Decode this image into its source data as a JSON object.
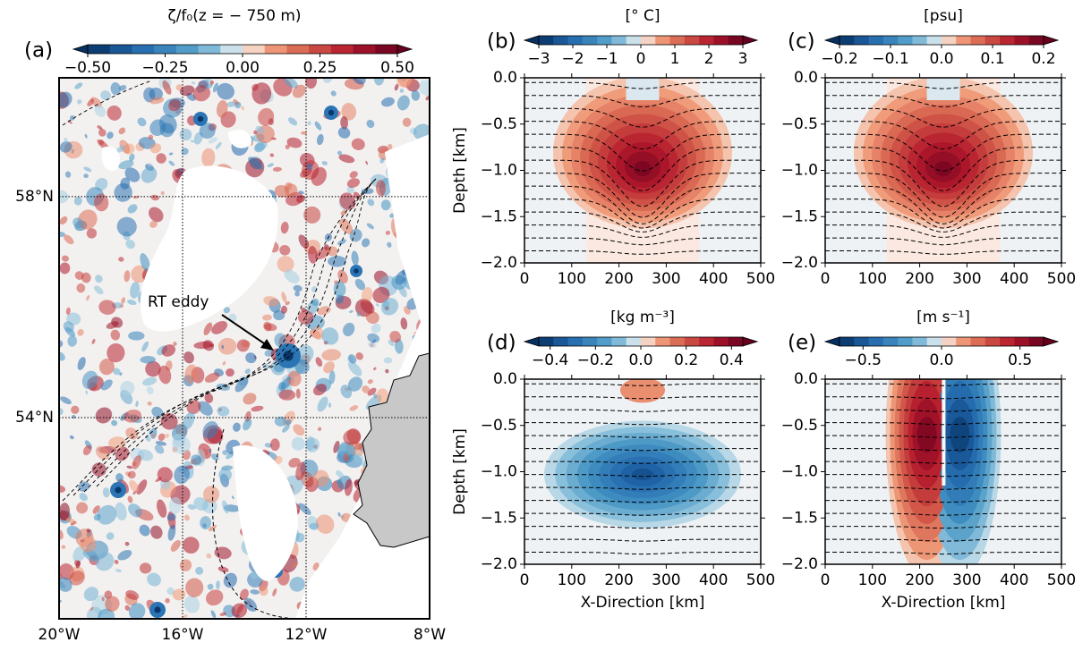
{
  "map_panel": {
    "label": "(a)",
    "colorbar_title": "ζ/f₀(z = − 750 m)",
    "colorbar_lim": [
      -0.5,
      0.5
    ],
    "colorbar_ticks": [
      {
        "value": -0.5,
        "label": "−0.50"
      },
      {
        "value": -0.25,
        "label": "−0.25"
      },
      {
        "value": 0,
        "label": "0.00"
      },
      {
        "value": 0.25,
        "label": "0.25"
      },
      {
        "value": 0.5,
        "label": "0.50"
      }
    ],
    "annotation": "RT eddy",
    "xlim": [
      -20,
      -8
    ],
    "ylim": [
      50.36,
      60.15
    ],
    "xticks": [
      {
        "value": -20,
        "label": "20°W"
      },
      {
        "value": -16,
        "label": "16°W"
      },
      {
        "value": -12,
        "label": "12°W"
      },
      {
        "value": -8,
        "label": "8°W"
      }
    ],
    "yticks": [
      {
        "value": 58,
        "label": "58°N"
      },
      {
        "value": 54,
        "label": "54°N"
      }
    ],
    "grid": true
  },
  "sections": {
    "x_label": "X-Direction [km]",
    "y_label": "Depth [km]",
    "xlim": [
      0,
      500
    ],
    "xticks": [
      0,
      100,
      200,
      300,
      400,
      500
    ],
    "ylim": [
      -2,
      0
    ],
    "yticks": [
      {
        "value": -2,
        "label": "−2.0"
      },
      {
        "value": -1.5,
        "label": "−1.5"
      },
      {
        "value": -1,
        "label": "−1.0"
      },
      {
        "value": -0.5,
        "label": "−0.5"
      },
      {
        "value": 0,
        "label": "0.0"
      }
    ],
    "panels": [
      {
        "label": "(b)",
        "colorbar_title": "[° C]",
        "colorbar_lim": [
          -3,
          3
        ],
        "colorbar_ticks": [
          {
            "value": -3,
            "label": "−3"
          },
          {
            "value": -2,
            "label": "−2"
          },
          {
            "value": -1,
            "label": "−1"
          },
          0,
          1,
          2,
          3
        ]
      },
      {
        "label": "(c)",
        "colorbar_title": "[psu]",
        "colorbar_lim": [
          -0.2,
          0.2
        ],
        "colorbar_ticks": [
          {
            "value": -0.2,
            "label": "−0.2"
          },
          {
            "value": -0.1,
            "label": "−0.1"
          },
          {
            "value": 0,
            "label": "0.0"
          },
          0.1,
          0.2
        ]
      },
      {
        "label": "(d)",
        "colorbar_title": "[kg m⁻³]",
        "colorbar_lim": [
          -0.45,
          0.45
        ],
        "colorbar_ticks": [
          {
            "value": -0.4,
            "label": "−0.4"
          },
          {
            "value": -0.2,
            "label": "−0.2"
          },
          {
            "value": 0,
            "label": "0.0"
          },
          0.2,
          0.4
        ]
      },
      {
        "label": "(e)",
        "colorbar_title": "[m s⁻¹]",
        "colorbar_lim": [
          -0.65,
          0.65
        ],
        "colorbar_ticks": [
          {
            "value": -0.5,
            "label": "−0.5"
          },
          {
            "value": 0,
            "label": "0.0"
          },
          0.5
        ]
      }
    ]
  }
}
